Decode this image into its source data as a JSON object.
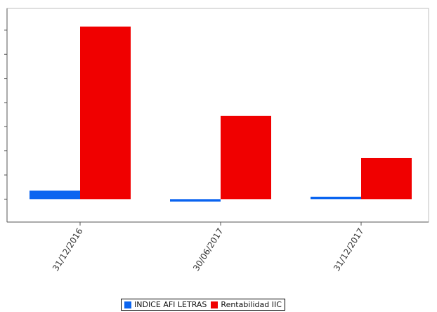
{
  "chart_data": {
    "type": "bar",
    "categories": [
      "31/12/2016",
      "30/06/2017",
      "31/12/2017"
    ],
    "series": [
      {
        "name": "INDICE AFI LETRAS",
        "color": "#0a64f0",
        "values": [
          0.35,
          -0.1,
          0.1
        ]
      },
      {
        "name": "Rentabilidad IIC",
        "color": "#f00000",
        "values": [
          7.15,
          3.45,
          1.7
        ]
      }
    ],
    "ylim": [
      -0.95,
      7.9
    ],
    "grid": false,
    "legend_position": "bottom-center"
  }
}
